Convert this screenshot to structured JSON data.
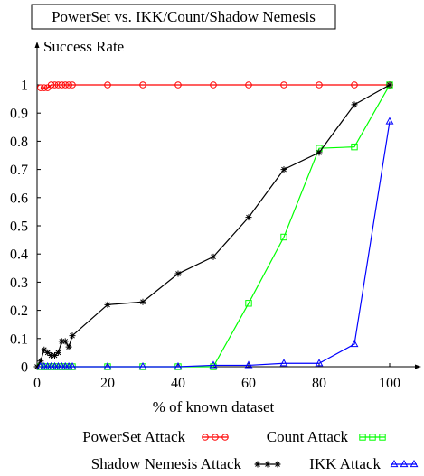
{
  "chart_data": {
    "type": "line",
    "title": "PowerSet vs. IKK/Count/Shadow Nemesis",
    "ylabel": "Success Rate",
    "xlabel": "% of known dataset",
    "xlim": [
      0,
      100
    ],
    "ylim": [
      0,
      1
    ],
    "x_ticks": [
      0,
      20,
      40,
      60,
      80,
      100
    ],
    "y_ticks": [
      0,
      0.1,
      0.2,
      0.3,
      0.4,
      0.5,
      0.6,
      0.7,
      0.8,
      0.9,
      1
    ],
    "y_tick_labels": [
      "0",
      "0.1",
      "0.2",
      "0.3",
      "0.4",
      "0.5",
      "0.6",
      "0.7",
      "0.8",
      "0.9",
      "1"
    ],
    "grid": false,
    "legend_position": "bottom",
    "series": [
      {
        "name": "PowerSet Attack",
        "color": "#ff0000",
        "marker": "circle",
        "x": [
          1,
          2,
          3,
          4,
          5,
          6,
          7,
          8,
          9,
          10,
          20,
          30,
          40,
          50,
          60,
          70,
          80,
          90,
          100
        ],
        "y": [
          0.99,
          0.99,
          0.99,
          1.0,
          1.0,
          1.0,
          1.0,
          1.0,
          1.0,
          1.0,
          1.0,
          1.0,
          1.0,
          1.0,
          1.0,
          1.0,
          1.0,
          1.0,
          1.0
        ]
      },
      {
        "name": "Count Attack",
        "color": "#00ff00",
        "marker": "square",
        "x": [
          1,
          2,
          3,
          4,
          5,
          6,
          7,
          8,
          9,
          10,
          20,
          30,
          40,
          50,
          60,
          70,
          80,
          90,
          100
        ],
        "y": [
          0,
          0,
          0,
          0,
          0,
          0,
          0,
          0,
          0,
          0,
          0,
          0,
          0,
          0,
          0.225,
          0.46,
          0.775,
          0.78,
          1.0
        ]
      },
      {
        "name": "Shadow Nemesis Attack",
        "color": "#000000",
        "marker": "star",
        "x": [
          0,
          1,
          2,
          3,
          4,
          5,
          6,
          7,
          8,
          9,
          10,
          20,
          30,
          40,
          50,
          60,
          70,
          80,
          90,
          100
        ],
        "y": [
          0.0,
          0.02,
          0.06,
          0.05,
          0.04,
          0.04,
          0.05,
          0.09,
          0.09,
          0.07,
          0.11,
          0.22,
          0.23,
          0.33,
          0.39,
          0.53,
          0.7,
          0.76,
          0.93,
          1.0
        ]
      },
      {
        "name": "IKK Attack",
        "color": "#0000ff",
        "marker": "triangle",
        "x": [
          1,
          2,
          3,
          4,
          5,
          6,
          7,
          8,
          9,
          10,
          20,
          30,
          40,
          50,
          60,
          70,
          80,
          90,
          100
        ],
        "y": [
          0,
          0,
          0,
          0,
          0,
          0,
          0,
          0,
          0,
          0,
          0,
          0,
          0,
          0.005,
          0.005,
          0.012,
          0.012,
          0.08,
          0.87
        ]
      }
    ]
  }
}
